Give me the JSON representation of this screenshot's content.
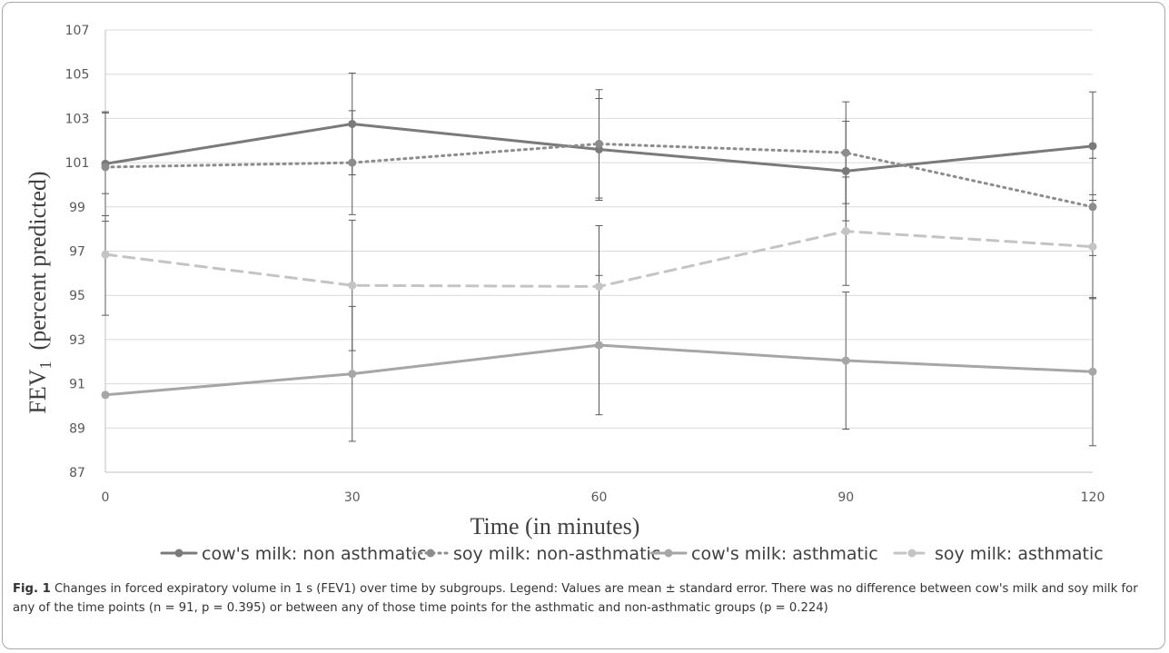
{
  "chart_data": {
    "type": "line",
    "x": [
      0,
      30,
      60,
      90,
      120
    ],
    "xticks": [
      "0",
      "30",
      "60",
      "90",
      "120"
    ],
    "ylim": [
      87,
      107
    ],
    "yticks": [
      "87",
      "89",
      "91",
      "93",
      "95",
      "97",
      "99",
      "101",
      "103",
      "105",
      "107"
    ],
    "xlabel": "Time (in minutes)",
    "ylabel": "FEV",
    "ylabel_sub": "1",
    "ylabel_suffix": "(percent predicted)",
    "grid": true,
    "legend_position": "bottom",
    "series": [
      {
        "name": "cow's milk: non asthmatic",
        "color": "#7a7a7a",
        "dash": "solid",
        "values": [
          100.95,
          102.75,
          101.6,
          100.62,
          101.75
        ],
        "error": [
          2.35,
          2.3,
          2.3,
          2.25,
          2.45
        ]
      },
      {
        "name": "soy milk: non-asthmatic",
        "color": "#8c8c8c",
        "dash": "dotted",
        "values": [
          100.8,
          101.0,
          101.85,
          101.45,
          99.0
        ],
        "error": [
          2.45,
          2.35,
          2.45,
          2.3,
          2.2
        ]
      },
      {
        "name": "cow's milk: asthmatic",
        "color": "#a6a6a6",
        "dash": "solid",
        "values": [
          90.5,
          91.45,
          92.75,
          92.05,
          91.55
        ],
        "error": [
          0,
          3.05,
          3.15,
          3.1,
          3.35
        ]
      },
      {
        "name": "soy milk: asthmatic",
        "color": "#c4c4c4",
        "dash": "dashed",
        "values": [
          96.85,
          95.45,
          95.4,
          97.9,
          97.2
        ],
        "error": [
          2.75,
          2.95,
          2.75,
          2.45,
          2.35
        ]
      }
    ]
  },
  "caption": {
    "label": "Fig. 1",
    "text": "Changes in forced expiratory volume in 1 s (FEV1) over time by subgroups. Legend: Values are mean ± standard error. There was no difference between cow's milk and soy milk for any of the time points (n = 91, p = 0.395) or between any of those time points for the asthmatic and non-asthmatic groups (p = 0.224)"
  }
}
